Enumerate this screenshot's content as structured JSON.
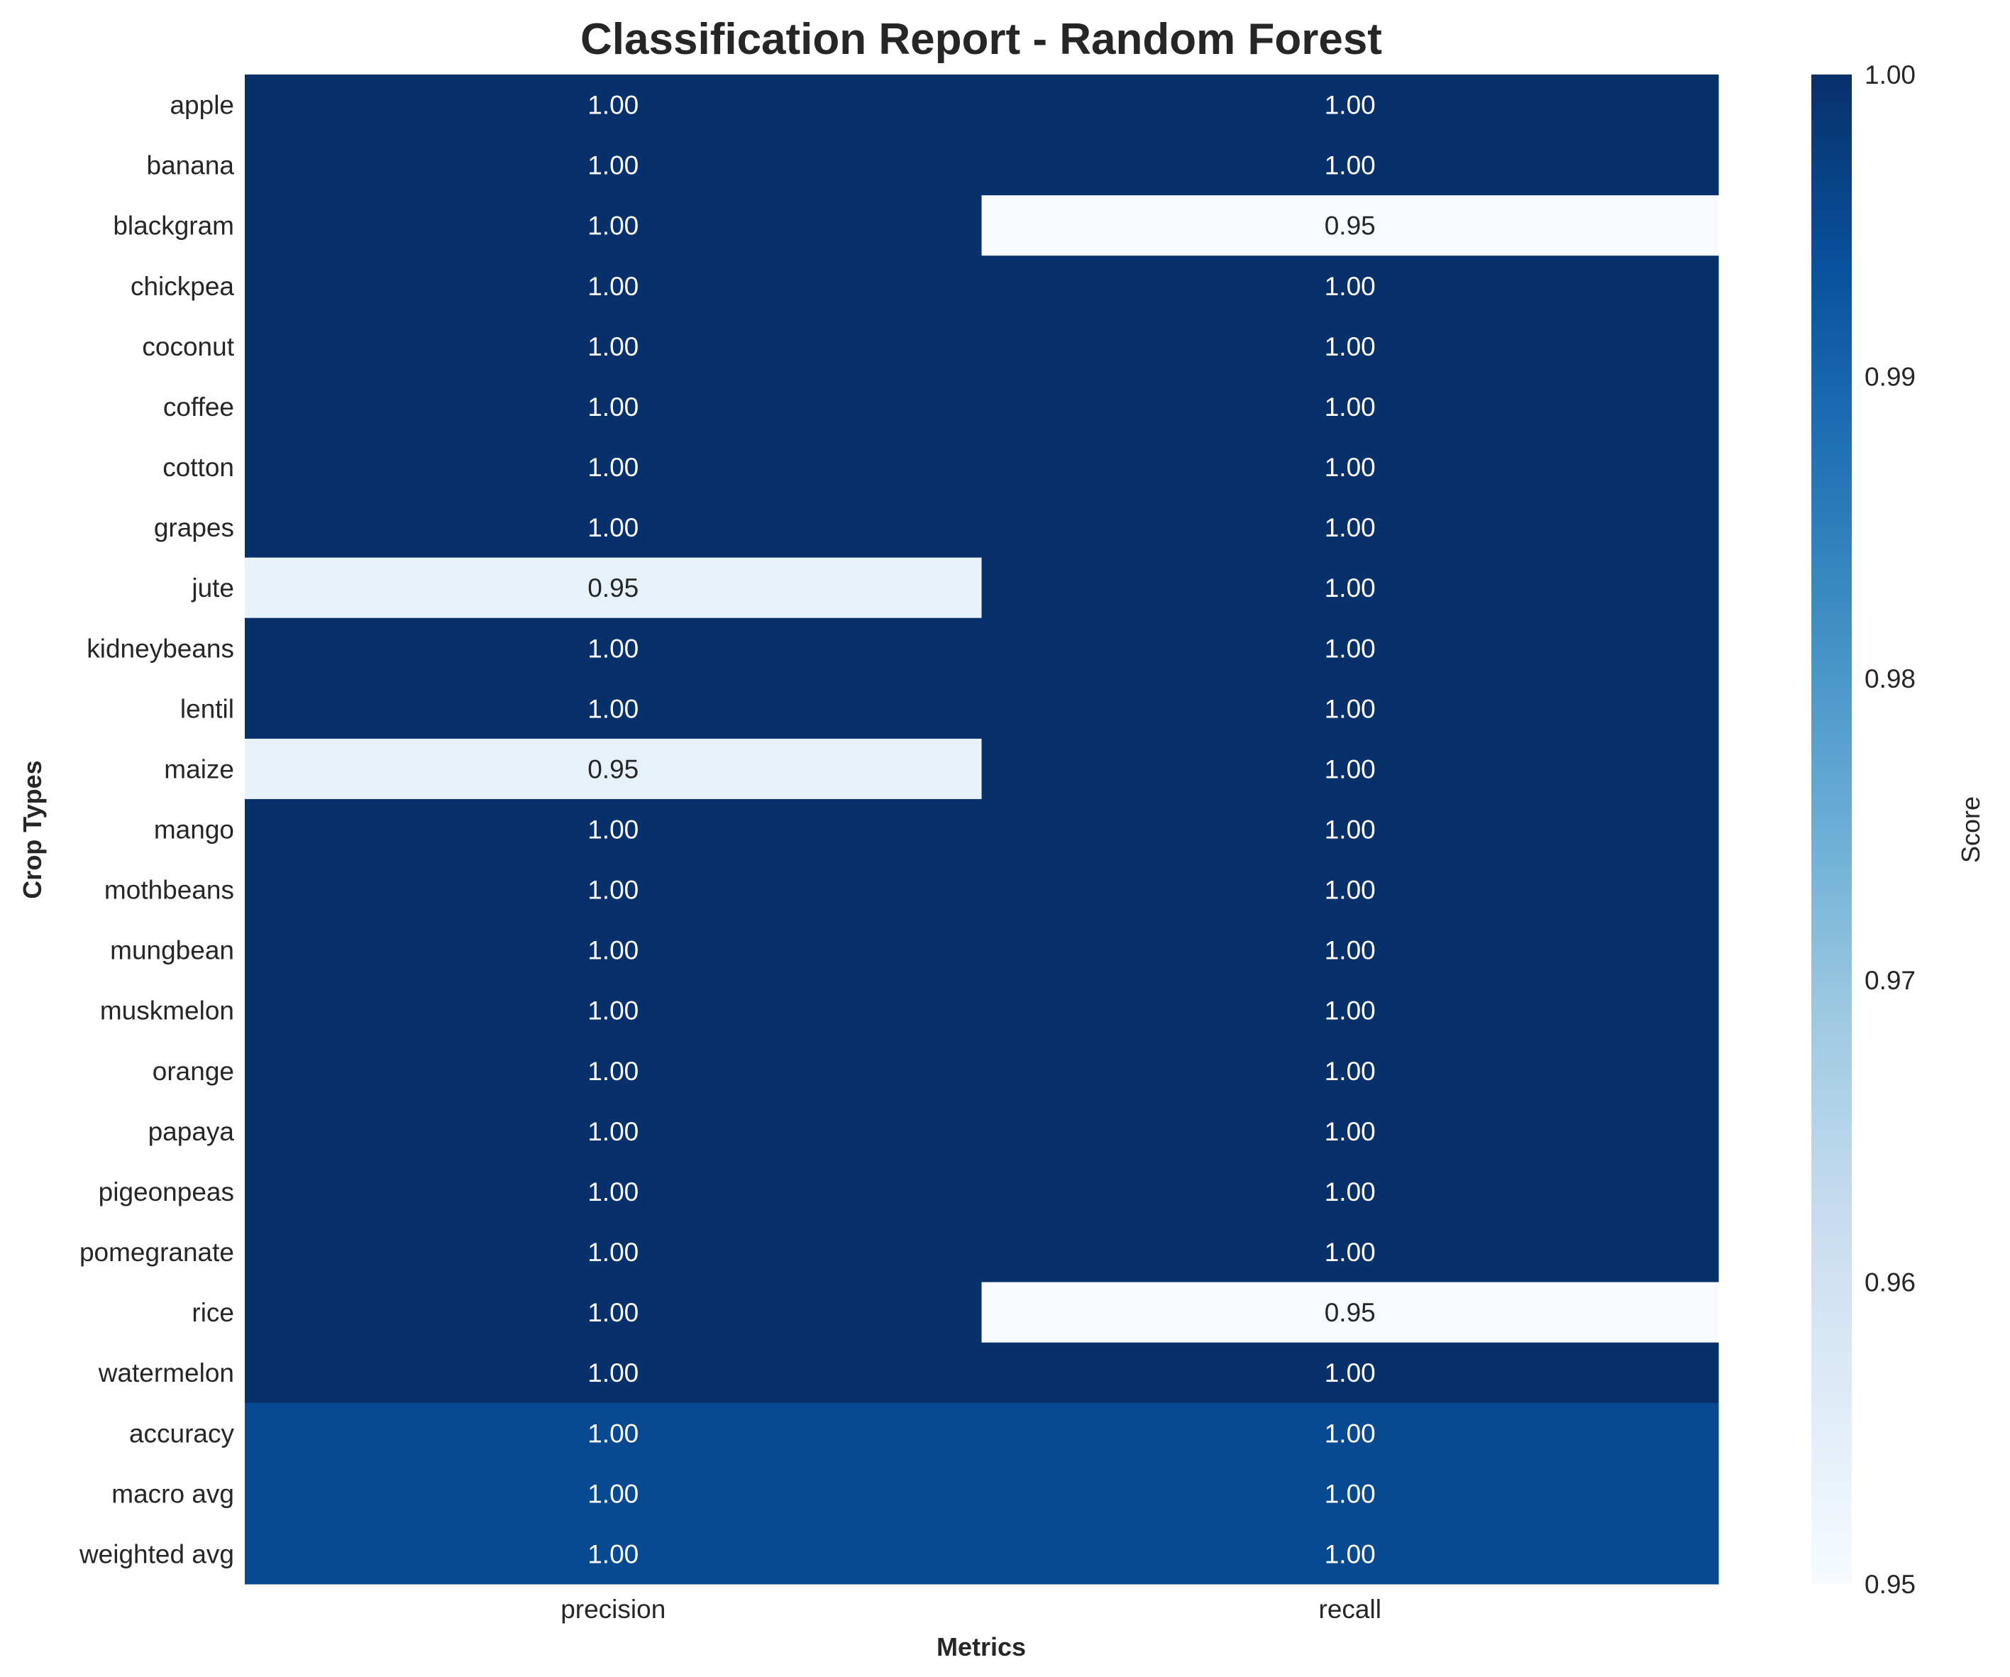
{
  "chart_data": {
    "type": "heatmap",
    "title": "Classification Report - Random Forest",
    "xlabel": "Metrics",
    "ylabel": "Crop Types",
    "columns": [
      "precision",
      "recall"
    ],
    "rows": [
      "apple",
      "banana",
      "blackgram",
      "chickpea",
      "coconut",
      "coffee",
      "cotton",
      "grapes",
      "jute",
      "kidneybeans",
      "lentil",
      "maize",
      "mango",
      "mothbeans",
      "mungbean",
      "muskmelon",
      "orange",
      "papaya",
      "pigeonpeas",
      "pomegranate",
      "rice",
      "watermelon",
      "accuracy",
      "macro avg",
      "weighted avg"
    ],
    "values": [
      [
        1.0,
        1.0
      ],
      [
        1.0,
        1.0
      ],
      [
        1.0,
        0.95
      ],
      [
        1.0,
        1.0
      ],
      [
        1.0,
        1.0
      ],
      [
        1.0,
        1.0
      ],
      [
        1.0,
        1.0
      ],
      [
        1.0,
        1.0
      ],
      [
        0.954,
        1.0
      ],
      [
        1.0,
        1.0
      ],
      [
        1.0,
        1.0
      ],
      [
        0.954,
        1.0
      ],
      [
        1.0,
        1.0
      ],
      [
        1.0,
        1.0
      ],
      [
        1.0,
        1.0
      ],
      [
        1.0,
        1.0
      ],
      [
        1.0,
        1.0
      ],
      [
        1.0,
        1.0
      ],
      [
        1.0,
        1.0
      ],
      [
        1.0,
        1.0
      ],
      [
        1.0,
        0.95
      ],
      [
        1.0,
        1.0
      ],
      [
        0.995,
        0.995
      ],
      [
        0.995,
        0.995
      ],
      [
        0.995,
        0.995
      ]
    ],
    "value_labels": [
      [
        "1.00",
        "1.00"
      ],
      [
        "1.00",
        "1.00"
      ],
      [
        "1.00",
        "0.95"
      ],
      [
        "1.00",
        "1.00"
      ],
      [
        "1.00",
        "1.00"
      ],
      [
        "1.00",
        "1.00"
      ],
      [
        "1.00",
        "1.00"
      ],
      [
        "1.00",
        "1.00"
      ],
      [
        "0.95",
        "1.00"
      ],
      [
        "1.00",
        "1.00"
      ],
      [
        "1.00",
        "1.00"
      ],
      [
        "0.95",
        "1.00"
      ],
      [
        "1.00",
        "1.00"
      ],
      [
        "1.00",
        "1.00"
      ],
      [
        "1.00",
        "1.00"
      ],
      [
        "1.00",
        "1.00"
      ],
      [
        "1.00",
        "1.00"
      ],
      [
        "1.00",
        "1.00"
      ],
      [
        "1.00",
        "1.00"
      ],
      [
        "1.00",
        "1.00"
      ],
      [
        "1.00",
        "0.95"
      ],
      [
        "1.00",
        "1.00"
      ],
      [
        "1.00",
        "1.00"
      ],
      [
        "1.00",
        "1.00"
      ],
      [
        "1.00",
        "1.00"
      ]
    ],
    "colorbar": {
      "label": "Score",
      "vmin": 0.95,
      "vmax": 1.0,
      "ticks": [
        0.95,
        0.96,
        0.97,
        0.98,
        0.99,
        1.0
      ],
      "tick_labels": [
        "0.95",
        "0.96",
        "0.97",
        "0.98",
        "0.99",
        "1.00"
      ],
      "colormap": "Blues"
    },
    "grid": false
  }
}
